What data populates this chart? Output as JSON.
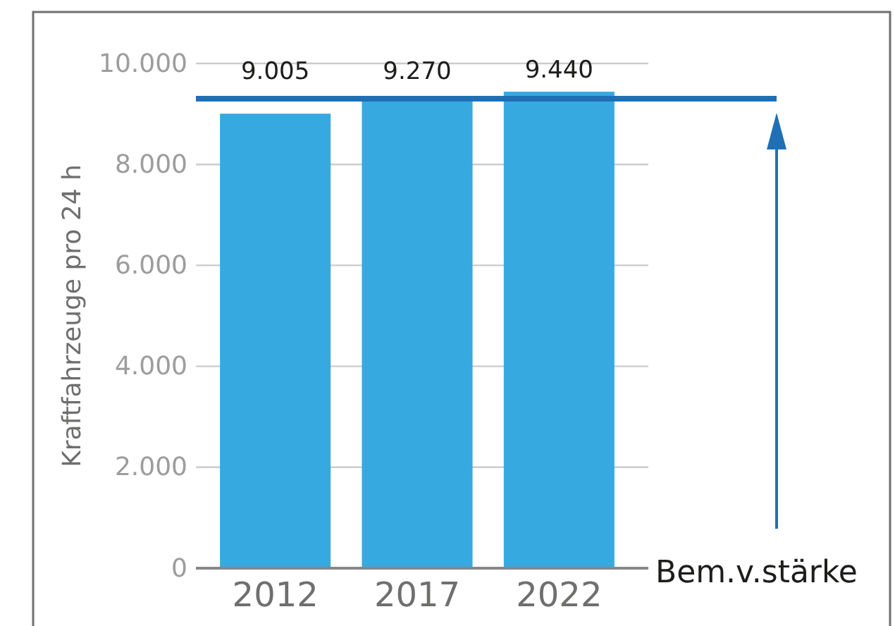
{
  "chart_data": {
    "type": "bar",
    "ylabel": "Kraftfahrzeuge pro 24 h",
    "categories": [
      "2012",
      "2017",
      "2022"
    ],
    "values": [
      9005,
      9270,
      9440
    ],
    "value_labels": [
      "9.005",
      "9.270",
      "9.440"
    ],
    "color": "#36a9e1",
    "ylim": [
      0,
      10000
    ],
    "yticks": [
      {
        "value": 0,
        "label": "0"
      },
      {
        "value": 2000,
        "label": "2.000"
      },
      {
        "value": 4000,
        "label": "4.000"
      },
      {
        "value": 6000,
        "label": "6.000"
      },
      {
        "value": 8000,
        "label": "8.000"
      },
      {
        "value": 10000,
        "label": "10.000"
      }
    ],
    "grid": "y",
    "ref_lines": [
      {
        "axis": "y",
        "value": 9300,
        "color": "#1f6fb5"
      }
    ],
    "annotations": [
      "Bem.v.stärke"
    ]
  }
}
